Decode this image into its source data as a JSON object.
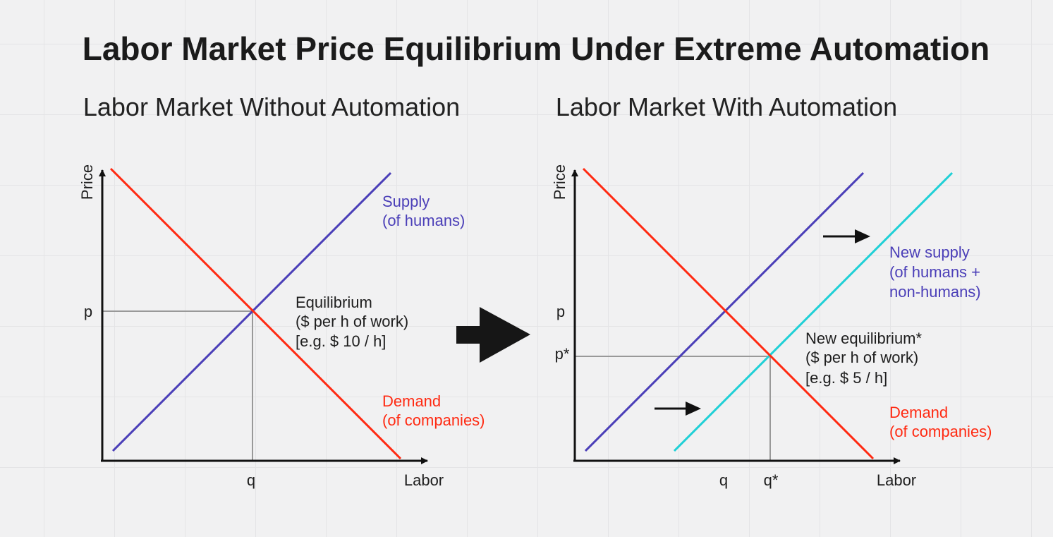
{
  "title": "Labor Market Price Equilibrium Under Extreme Automation",
  "colors": {
    "supply": "#4b3fb8",
    "new_supply": "#1fd0d6",
    "demand": "#ff2a12",
    "axis": "#111111",
    "guide": "#999999",
    "big_arrow": "#161616"
  },
  "left_panel": {
    "subtitle": "Labor Market Without Automation",
    "y_axis_label": "Price",
    "x_axis_label": "Labor",
    "price_tick": "p",
    "quantity_tick": "q",
    "supply_label": [
      "Supply",
      "(of humans)"
    ],
    "demand_label": [
      "Demand",
      "(of companies)"
    ],
    "equilibrium_label": [
      "Equilibrium",
      "($ per h of work)",
      "[e.g. $ 10 / h]"
    ]
  },
  "right_panel": {
    "subtitle": "Labor Market With Automation",
    "y_axis_label": "Price",
    "x_axis_label": "Labor",
    "price_tick": "p",
    "price_star_tick": "p*",
    "quantity_tick": "q",
    "quantity_star_tick": "q*",
    "new_supply_label": [
      "New supply",
      "(of humans +",
      "non-humans)"
    ],
    "demand_label": [
      "Demand",
      "(of companies)"
    ],
    "equilibrium_label": [
      "New equilibrium*",
      "($ per h of work)",
      "[e.g. $ 5 / h]"
    ]
  },
  "shift_arrow_icon": "right-arrow-icon",
  "transition_arrow_icon": "big-right-arrow-icon"
}
